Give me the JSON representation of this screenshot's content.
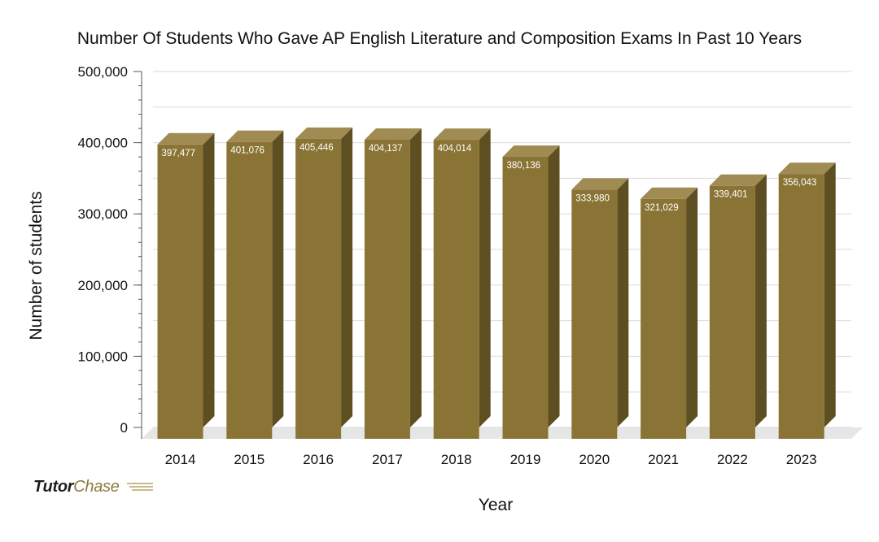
{
  "chart_data": {
    "type": "bar",
    "title": "Number Of Students Who Gave AP English Literature and Composition Exams In Past 10 Years",
    "xlabel": "Year",
    "ylabel": "Number of students",
    "categories": [
      "2014",
      "2015",
      "2016",
      "2017",
      "2018",
      "2019",
      "2020",
      "2021",
      "2022",
      "2023"
    ],
    "values": [
      397477,
      401076,
      405446,
      404137,
      404014,
      380136,
      333980,
      321029,
      339401,
      356043
    ],
    "value_labels": [
      "397,477",
      "401,076",
      "405,446",
      "404,137",
      "404,014",
      "380,136",
      "333,980",
      "321,029",
      "339,401",
      "356,043"
    ],
    "ylim": [
      0,
      500000
    ],
    "yticks": [
      0,
      100000,
      200000,
      300000,
      400000,
      500000
    ],
    "ytick_labels": [
      "0",
      "100,000",
      "200,000",
      "300,000",
      "400,000",
      "500,000"
    ],
    "grid": true,
    "style": "3d",
    "colors": {
      "bar_front": "#8a7435",
      "bar_top": "#a08b52",
      "bar_side": "#5e4f22",
      "grid": "#d9d9d9",
      "floor": "#e6e6e6"
    }
  },
  "logo": {
    "part1": "Tutor",
    "part2": "Chase"
  }
}
